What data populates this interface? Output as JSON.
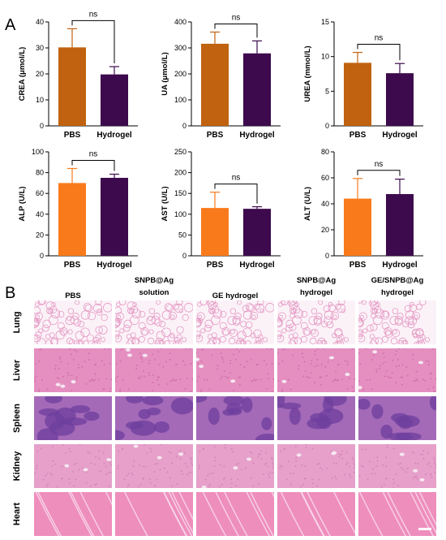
{
  "panels": {
    "a": "A",
    "b": "B"
  },
  "chart_data": [
    {
      "type": "bar",
      "categories": [
        "PBS",
        "Hydrogel"
      ],
      "values": [
        30.2,
        19.8
      ],
      "errors": [
        7.2,
        3.0
      ],
      "ylabel": "CREA (μmol/L)",
      "ylim": [
        0,
        40
      ],
      "yticks": [
        0,
        10,
        20,
        30,
        40
      ],
      "annotation": "ns",
      "colors": [
        "#c0620f",
        "#3d0a4d"
      ]
    },
    {
      "type": "bar",
      "categories": [
        "PBS",
        "Hydrogel"
      ],
      "values": [
        316,
        279
      ],
      "errors": [
        45,
        48
      ],
      "ylabel": "UA (μmol/L)",
      "ylim": [
        0,
        400
      ],
      "yticks": [
        0,
        100,
        200,
        300,
        400
      ],
      "annotation": "ns",
      "colors": [
        "#c0620f",
        "#3d0a4d"
      ]
    },
    {
      "type": "bar",
      "categories": [
        "PBS",
        "Hydrogel"
      ],
      "values": [
        9.1,
        7.6
      ],
      "errors": [
        1.5,
        1.4
      ],
      "ylabel": "UREA (mmol/L)",
      "ylim": [
        0,
        15
      ],
      "yticks": [
        0,
        5,
        10,
        15
      ],
      "annotation": "ns",
      "colors": [
        "#c0620f",
        "#3d0a4d"
      ]
    },
    {
      "type": "bar",
      "categories": [
        "PBS",
        "Hydrogel"
      ],
      "values": [
        70,
        75
      ],
      "errors": [
        14,
        3.5
      ],
      "ylabel": "ALP (U/L)",
      "ylim": [
        0,
        100
      ],
      "yticks": [
        0,
        20,
        40,
        60,
        80,
        100
      ],
      "annotation": "ns",
      "colors": [
        "#f97a1b",
        "#3d0a4d"
      ]
    },
    {
      "type": "bar",
      "categories": [
        "PBS",
        "Hydrogel"
      ],
      "values": [
        115,
        113
      ],
      "errors": [
        38,
        5
      ],
      "ylabel": "AST (U/L)",
      "ylim": [
        0,
        250
      ],
      "yticks": [
        0,
        50,
        100,
        150,
        200,
        250
      ],
      "annotation": "ns",
      "colors": [
        "#f97a1b",
        "#3d0a4d"
      ]
    },
    {
      "type": "bar",
      "categories": [
        "PBS",
        "Hydrogel"
      ],
      "values": [
        44,
        47.5
      ],
      "errors": [
        15.5,
        11.5
      ],
      "ylabel": "ALT (U/L)",
      "ylim": [
        0,
        80
      ],
      "yticks": [
        0,
        20,
        40,
        60,
        80
      ],
      "annotation": "ns",
      "colors": [
        "#f97a1b",
        "#3d0a4d"
      ]
    }
  ],
  "histology": {
    "columns": [
      {
        "lines": [
          "PBS"
        ]
      },
      {
        "lines": [
          "SNPB@Ag",
          "solution"
        ]
      },
      {
        "lines": [
          "GE hydrogel"
        ]
      },
      {
        "lines": [
          "SNPB@Ag",
          "hydrogel"
        ]
      },
      {
        "lines": [
          "GE/SNPB@Ag",
          "hydrogel"
        ]
      }
    ],
    "rows": [
      {
        "label": "Lung",
        "tissue_color": "#f3cfe3",
        "accent_color": "#e59ac4",
        "background": "#fbf2f8"
      },
      {
        "label": "Liver",
        "tissue_color": "#e48fc0",
        "accent_color": "#d06aa8",
        "background": "#e48fc0"
      },
      {
        "label": "Spleen",
        "tissue_color": "#a46ab8",
        "accent_color": "#6e3f9e",
        "background": "#a46ab8"
      },
      {
        "label": "Kidney",
        "tissue_color": "#e6a0c9",
        "accent_color": "#d37fb5",
        "background": "#e6a0c9"
      },
      {
        "label": "Heart",
        "tissue_color": "#ee8ebd",
        "accent_color": "#f8d9ea",
        "background": "#ee8ebd"
      }
    ]
  }
}
